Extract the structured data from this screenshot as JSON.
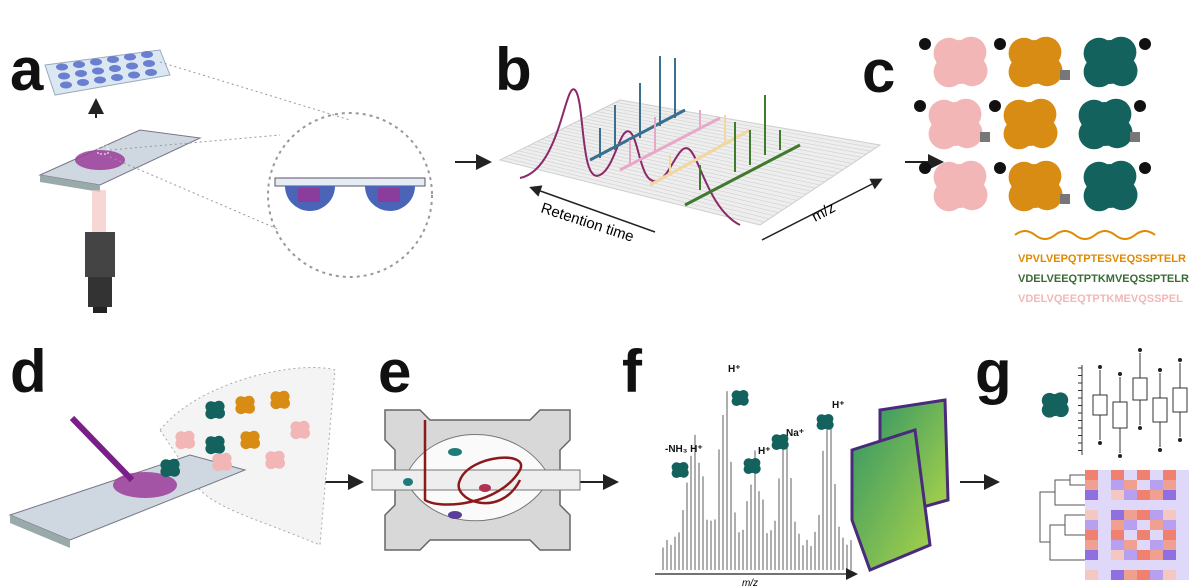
{
  "panels": [
    {
      "label": "a"
    },
    {
      "label": "b"
    },
    {
      "label": "c"
    },
    {
      "label": "d"
    },
    {
      "label": "e"
    },
    {
      "label": "f"
    },
    {
      "label": "g"
    }
  ],
  "panel_b": {
    "x_label": "Retention time",
    "y_label": "m/z"
  },
  "panel_c": {
    "sequences": [
      "VPVLVEPQTPTESVEQSSPTELR",
      "VDELVEEQTPTKMVEQSSPTELR",
      "VDELVQEEQTPTKMEVQSSPEL"
    ]
  },
  "panel_f": {
    "annotations": [
      "-NH₃ H⁺",
      "H⁺",
      "Na⁺",
      "H⁺",
      "H⁺"
    ],
    "x_label": "m/z"
  }
}
